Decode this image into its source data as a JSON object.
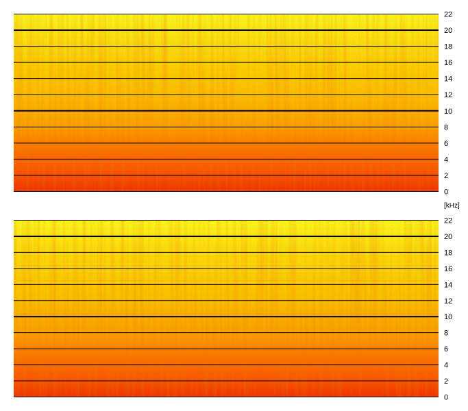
{
  "chart_data": [
    {
      "type": "heatmap",
      "title": "",
      "xlabel": "",
      "ylabel": "[kHz]",
      "ylim": [
        0,
        22
      ],
      "yticks": [
        0,
        2,
        4,
        6,
        8,
        10,
        12,
        14,
        16,
        18,
        20,
        22
      ],
      "grid": true,
      "emphasized_gridlines": [
        10,
        20
      ],
      "energy_profile": {
        "frequency_khz": [
          0,
          2,
          4,
          6,
          8,
          10,
          12,
          14,
          16,
          18,
          20,
          22
        ],
        "relative_level": [
          0.95,
          0.8,
          0.7,
          0.6,
          0.45,
          0.38,
          0.3,
          0.25,
          0.2,
          0.15,
          0.08,
          0.0
        ]
      },
      "colorscale": [
        "#ffff22",
        "#ffcc00",
        "#ff9900",
        "#ff5500",
        "#ee2200"
      ]
    },
    {
      "type": "heatmap",
      "title": "",
      "xlabel": "",
      "ylabel": "",
      "ylim": [
        0,
        22
      ],
      "yticks": [
        0,
        2,
        4,
        6,
        8,
        10,
        12,
        14,
        16,
        18,
        20,
        22
      ],
      "grid": true,
      "emphasized_gridlines": [
        10,
        20
      ],
      "energy_profile": {
        "frequency_khz": [
          0,
          2,
          4,
          6,
          8,
          10,
          12,
          14,
          16,
          18,
          20,
          22
        ],
        "relative_level": [
          0.95,
          0.78,
          0.68,
          0.58,
          0.45,
          0.38,
          0.3,
          0.25,
          0.2,
          0.15,
          0.08,
          0.0
        ]
      },
      "colorscale": [
        "#ffff22",
        "#ffcc00",
        "#ff9900",
        "#ff5500",
        "#ee2200"
      ]
    }
  ],
  "unit_label": "[kHz]"
}
